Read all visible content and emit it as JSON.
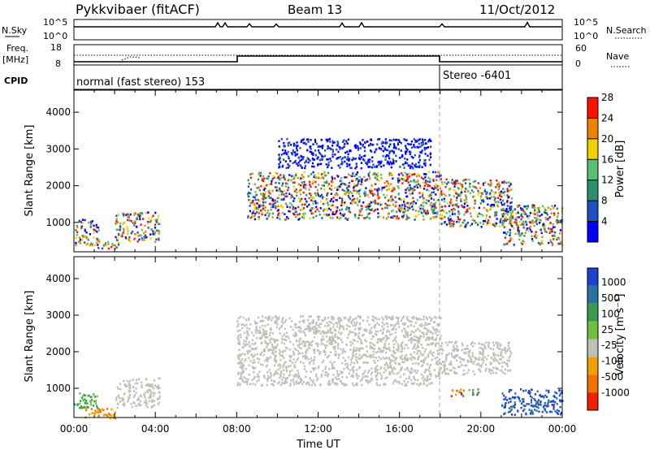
{
  "header": {
    "station": "Pykkvibaer (fitACF)",
    "beam": "Beam 13",
    "date": "11/Oct/2012"
  },
  "strips": {
    "nsky_label": "N.Sky",
    "nsky_ticks": [
      "10^5",
      "10^0"
    ],
    "nsearch_label": "N.Search",
    "nsearch_ticks": [
      "10^5",
      "10^0"
    ],
    "freq_label": "Freq.",
    "freq_unit": "[MHz]",
    "freq_ticks": [
      "18",
      "8"
    ],
    "nave_label": "Nave",
    "nave_ticks": [
      "60",
      "0"
    ],
    "cpid_label": "CPID",
    "cpid_left": "normal (fast stereo) 153",
    "cpid_right": "Stereo -6401"
  },
  "chart_data": [
    {
      "type": "heatmap",
      "panel": "power",
      "ylabel": "Slant Range [km]",
      "xlabel": "",
      "yticks": [
        "1000",
        "2000",
        "3000",
        "4000"
      ],
      "ylim": [
        200,
        4600
      ],
      "xlim": [
        0,
        24
      ],
      "colorbar_label": "Power [dB]",
      "colorbar_ticks": [
        "4",
        "8",
        "12",
        "16",
        "20",
        "24",
        "28"
      ],
      "colorbar_colors": [
        "#0000ff",
        "#1f4fbf",
        "#2d8f6f",
        "#55c070",
        "#f0d000",
        "#f08000",
        "#ff1000"
      ],
      "echo_regions": [
        {
          "t0": 0.0,
          "t1": 1.2,
          "r0": 400,
          "r1": 1100,
          "level": "mixed"
        },
        {
          "t0": 1.0,
          "t1": 2.2,
          "r0": 300,
          "r1": 500,
          "level": "mixed"
        },
        {
          "t0": 2.0,
          "t1": 4.2,
          "r0": 500,
          "r1": 1300,
          "level": "mixed"
        },
        {
          "t0": 8.5,
          "t1": 18.0,
          "r0": 1100,
          "r1": 2400,
          "level": "mixed"
        },
        {
          "t0": 10.0,
          "t1": 17.5,
          "r0": 2500,
          "r1": 3300,
          "level": "weak"
        },
        {
          "t0": 18.0,
          "t1": 21.5,
          "r0": 900,
          "r1": 2200,
          "level": "mixed"
        },
        {
          "t0": 21.0,
          "t1": 24.0,
          "r0": 400,
          "r1": 1500,
          "level": "mixed"
        }
      ]
    },
    {
      "type": "heatmap",
      "panel": "velocity",
      "ylabel": "Slant Range [km]",
      "xlabel": "Time UT",
      "xticks": [
        "00:00",
        "04:00",
        "08:00",
        "12:00",
        "16:00",
        "20:00",
        "00:00"
      ],
      "yticks": [
        "1000",
        "2000",
        "3000",
        "4000"
      ],
      "ylim": [
        200,
        4600
      ],
      "xlim": [
        0,
        24
      ],
      "colorbar_label": "Velocity [m s⁻¹]",
      "colorbar_ticks": [
        "1000",
        "500",
        "100",
        "25",
        "-25",
        "-100",
        "-500",
        "-1000"
      ],
      "colorbar_colors": [
        "#2040d0",
        "#2a70a0",
        "#3a9a50",
        "#70c040",
        "#c0c0b8",
        "#f0a000",
        "#f07000",
        "#f02000"
      ],
      "echo_regions": [
        {
          "t0": 0.0,
          "t1": 1.2,
          "r0": 400,
          "r1": 900,
          "level": "green"
        },
        {
          "t0": 0.5,
          "t1": 2.0,
          "r0": 200,
          "r1": 500,
          "level": "orange"
        },
        {
          "t0": 2.0,
          "t1": 4.2,
          "r0": 500,
          "r1": 1300,
          "level": "gray"
        },
        {
          "t0": 8.0,
          "t1": 18.0,
          "r0": 1100,
          "r1": 3000,
          "level": "gray"
        },
        {
          "t0": 18.0,
          "t1": 21.5,
          "r0": 1400,
          "r1": 2300,
          "level": "gray"
        },
        {
          "t0": 18.5,
          "t1": 20.0,
          "r0": 800,
          "r1": 1000,
          "level": "mixed"
        },
        {
          "t0": 21.0,
          "t1": 24.0,
          "r0": 300,
          "r1": 1000,
          "level": "blue"
        }
      ]
    }
  ]
}
